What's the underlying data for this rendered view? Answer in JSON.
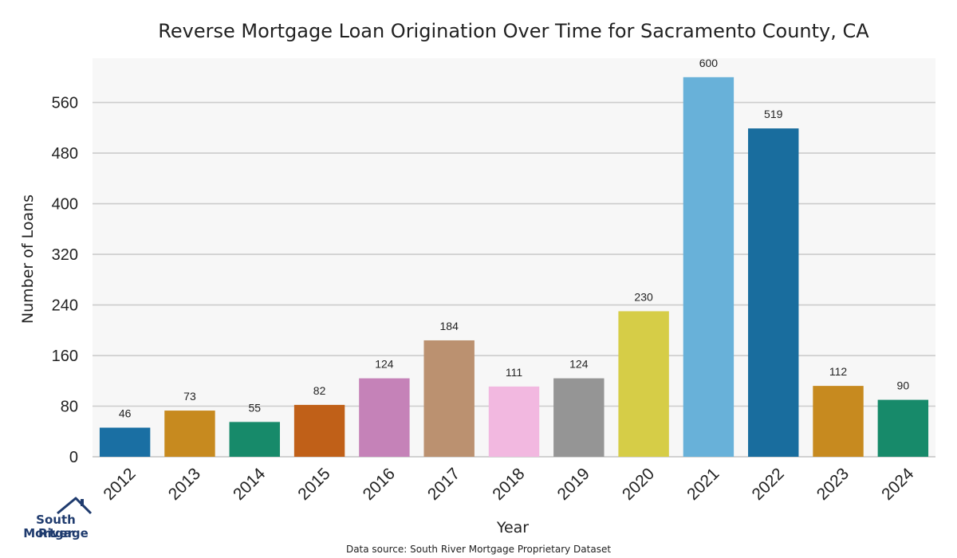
{
  "chart_data": {
    "type": "bar",
    "title": "Reverse Mortgage Loan Origination Over Time for Sacramento County, CA",
    "xlabel": "Year",
    "ylabel": "Number of Loans",
    "categories": [
      "2012",
      "2013",
      "2014",
      "2015",
      "2016",
      "2017",
      "2018",
      "2019",
      "2020",
      "2021",
      "2022",
      "2023",
      "2024"
    ],
    "values": [
      46,
      73,
      55,
      82,
      124,
      184,
      111,
      124,
      230,
      600,
      519,
      112,
      90
    ],
    "colors": [
      "#1a6fa3",
      "#c78a1f",
      "#178a6a",
      "#c06018",
      "#c582b8",
      "#bb9170",
      "#f2b8e0",
      "#959595",
      "#d6cd47",
      "#68b1d9",
      "#196d9e",
      "#c78a1f",
      "#178a6a"
    ],
    "ylim": [
      0,
      630
    ],
    "yticks": [
      0,
      80,
      160,
      240,
      320,
      400,
      480,
      560
    ],
    "grid": true,
    "plot_background": "#f7f7f7",
    "source_note": "Data source: South River Mortgage Proprietary Dataset"
  },
  "logo": {
    "line1": "South River",
    "line2": "Mortgage",
    "color": "#1f3b6e",
    "icon": "house-outline-icon"
  }
}
